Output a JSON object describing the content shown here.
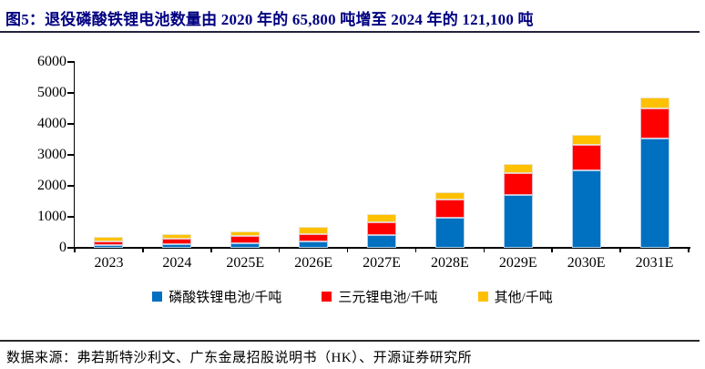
{
  "page": {
    "title": "图5：退役磷酸铁锂电池数量由 2020 年的 65,800 吨增至 2024 年的 121,100 吨",
    "title_color": "#000080",
    "source": "数据来源：弗若斯特沙利文、广东金晟招股说明书（HK）、开源证券研究所"
  },
  "chart_data": {
    "type": "bar",
    "stacked": true,
    "title": "退役磷酸铁锂电池数量由 2020 年的 65,800 吨增至 2024 年的 121,100 吨",
    "categories": [
      "2023",
      "2024",
      "2025E",
      "2026E",
      "2027E",
      "2028E",
      "2029E",
      "2030E",
      "2031E"
    ],
    "series": [
      {
        "name": "磷酸铁锂电池/千吨",
        "color": "#0070C0",
        "values": [
          100,
          121,
          150,
          200,
          420,
          960,
          1715,
          2500,
          3525
        ]
      },
      {
        "name": "三元锂电池/千吨",
        "color": "#FF0000",
        "values": [
          120,
          180,
          225,
          250,
          400,
          610,
          700,
          820,
          965
        ]
      },
      {
        "name": "其他/千吨",
        "color": "#FFC000",
        "values": [
          135,
          155,
          170,
          220,
          260,
          225,
          305,
          315,
          355
        ]
      }
    ],
    "xlabel": "",
    "ylabel": "",
    "ylim": [
      0,
      6000
    ],
    "yticks": [
      0,
      1000,
      2000,
      3000,
      4000,
      5000,
      6000
    ],
    "grid": false,
    "legend_position": "bottom"
  }
}
